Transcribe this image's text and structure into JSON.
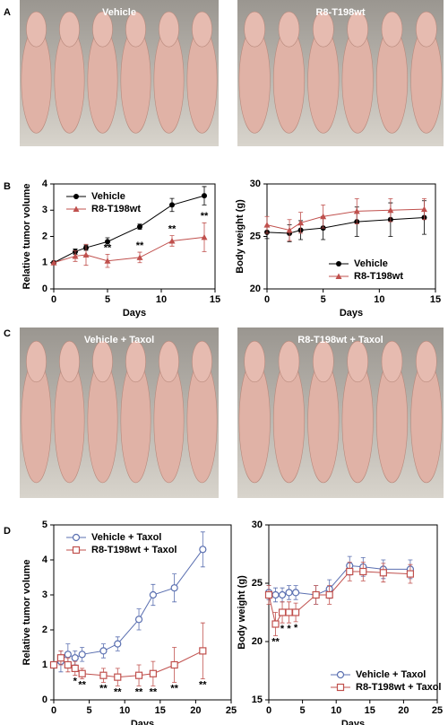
{
  "panels": [
    "A",
    "B",
    "C",
    "D"
  ],
  "photos": {
    "A": [
      "Vehicle",
      "R8-T198wt"
    ],
    "C": [
      "Vehicle + Taxol",
      "R8-T198wt + Taxol"
    ]
  },
  "chart_data": [
    {
      "type": "line",
      "xlabel": "Days",
      "ylabel": "Relative tumor volume",
      "x": [
        0,
        2,
        3,
        5,
        8,
        11,
        14
      ],
      "xlim": [
        0,
        15
      ],
      "xticks": [
        0,
        5,
        10,
        15
      ],
      "ylim": [
        0,
        4
      ],
      "yticks": [
        0,
        1,
        2,
        3,
        4
      ],
      "legend": "upper left",
      "series": [
        {
          "name": "Vehicle",
          "color": "#000000",
          "marker": "circle",
          "values": [
            1,
            1.42,
            1.57,
            1.8,
            2.37,
            3.2,
            3.55
          ],
          "errors": [
            0,
            0.1,
            0.1,
            0.15,
            0.1,
            0.25,
            0.35
          ]
        },
        {
          "name": "R8-T198wt",
          "color": "#c0504d",
          "marker": "triangle",
          "values": [
            1,
            1.25,
            1.3,
            1.07,
            1.2,
            1.83,
            1.97
          ],
          "errors": [
            0,
            0.2,
            0.4,
            0.25,
            0.2,
            0.2,
            0.55
          ]
        }
      ],
      "annotations": [
        {
          "x": 5,
          "text": "**"
        },
        {
          "x": 8,
          "text": "**"
        },
        {
          "x": 11,
          "text": "**"
        },
        {
          "x": 14,
          "text": "**"
        }
      ]
    },
    {
      "type": "line",
      "xlabel": "Days",
      "ylabel": "Body weight (g)",
      "x": [
        0,
        2,
        3,
        5,
        8,
        11,
        14
      ],
      "xlim": [
        0,
        15
      ],
      "xticks": [
        0,
        5,
        10,
        15
      ],
      "ylim": [
        20,
        30
      ],
      "yticks": [
        20,
        25,
        30
      ],
      "legend": "lower right",
      "series": [
        {
          "name": "Vehicle",
          "color": "#000000",
          "marker": "circle",
          "values": [
            25.4,
            25.3,
            25.6,
            25.8,
            26.4,
            26.6,
            26.8
          ],
          "errors": [
            0.6,
            0.8,
            0.9,
            1.1,
            1.4,
            1.6,
            1.6
          ]
        },
        {
          "name": "R8-T198wt",
          "color": "#c0504d",
          "marker": "triangle",
          "values": [
            26.1,
            25.6,
            26.3,
            26.9,
            27.4,
            27.5,
            27.6
          ],
          "errors": [
            0.8,
            1.0,
            1.0,
            1.1,
            1.2,
            1.1,
            1.0
          ]
        }
      ]
    },
    {
      "type": "line",
      "xlabel": "Days",
      "ylabel": "Relative tumor volume",
      "x": [
        0,
        1,
        2,
        3,
        4,
        7,
        9,
        12,
        14,
        17,
        21
      ],
      "xlim": [
        0,
        25
      ],
      "xticks": [
        0,
        5,
        10,
        15,
        20,
        25
      ],
      "ylim": [
        0,
        5
      ],
      "yticks": [
        0,
        1,
        2,
        3,
        4,
        5
      ],
      "legend": "upper left",
      "series": [
        {
          "name": "Vehicle + Taxol",
          "color": "#5a6fb0",
          "marker": "open-circle",
          "values": [
            1,
            1.1,
            1.3,
            1.2,
            1.3,
            1.4,
            1.6,
            2.3,
            3.0,
            3.2,
            4.3
          ],
          "errors": [
            0,
            0.3,
            0.3,
            0.2,
            0.2,
            0.2,
            0.2,
            0.3,
            0.3,
            0.4,
            0.5
          ]
        },
        {
          "name": "R8-T198wt + Taxol",
          "color": "#c0504d",
          "marker": "open-square",
          "values": [
            1,
            1.2,
            1.0,
            0.9,
            0.75,
            0.7,
            0.65,
            0.7,
            0.75,
            1.0,
            1.4
          ],
          "errors": [
            0,
            0.2,
            0.2,
            0.2,
            0.15,
            0.2,
            0.25,
            0.3,
            0.35,
            0.5,
            0.8
          ]
        }
      ],
      "annotations": [
        {
          "x": 3,
          "text": "*"
        },
        {
          "x": 4,
          "text": "**"
        },
        {
          "x": 7,
          "text": "**"
        },
        {
          "x": 9,
          "text": "**"
        },
        {
          "x": 12,
          "text": "**"
        },
        {
          "x": 14,
          "text": "**"
        },
        {
          "x": 17,
          "text": "**"
        },
        {
          "x": 21,
          "text": "**"
        }
      ]
    },
    {
      "type": "line",
      "xlabel": "Days",
      "ylabel": "Body weight (g)",
      "x": [
        0,
        1,
        2,
        3,
        4,
        7,
        9,
        12,
        14,
        17,
        21
      ],
      "xlim": [
        0,
        25
      ],
      "xticks": [
        0,
        5,
        10,
        15,
        20,
        25
      ],
      "ylim": [
        15,
        30
      ],
      "yticks": [
        15,
        20,
        25,
        30
      ],
      "legend": "lower right",
      "series": [
        {
          "name": "Vehicle + Taxol",
          "color": "#5a6fb0",
          "marker": "open-circle",
          "values": [
            24.2,
            24,
            24,
            24.2,
            24.2,
            24,
            24.5,
            26.5,
            26.4,
            26.2,
            26.2
          ],
          "errors": [
            0.6,
            0.6,
            0.6,
            0.6,
            0.6,
            0.8,
            0.8,
            0.8,
            0.8,
            0.8,
            0.8
          ]
        },
        {
          "name": "R8-T198wt + Taxol",
          "color": "#c0504d",
          "marker": "open-square",
          "values": [
            24,
            21.5,
            22.5,
            22.5,
            22.5,
            24,
            24,
            26,
            26,
            25.9,
            25.8
          ],
          "errors": [
            0.8,
            1.0,
            0.9,
            0.9,
            0.8,
            0.8,
            0.8,
            0.8,
            0.8,
            0.8,
            0.8
          ]
        }
      ],
      "annotations": [
        {
          "x": 1,
          "text": "**"
        },
        {
          "x": 2,
          "text": "*"
        },
        {
          "x": 3,
          "text": "*"
        },
        {
          "x": 4,
          "text": "*"
        }
      ]
    }
  ]
}
